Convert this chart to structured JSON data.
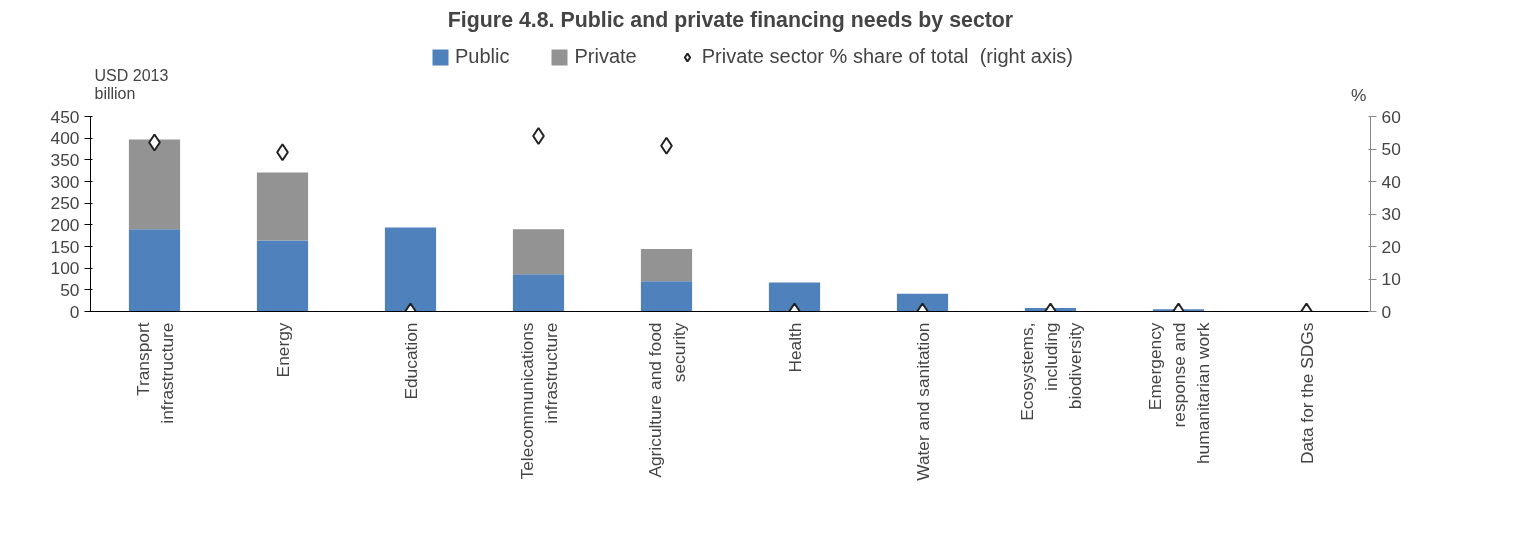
{
  "chart_data": {
    "type": "bar",
    "title": "Figure 4.8. Public and private financing needs by sector",
    "ylabel": "USD 2013\nbillion",
    "y2label": "%",
    "categories": [
      "Transport\ninfrastructure",
      "Energy",
      "Education",
      "Telecommunications\ninfrastructure",
      "Agriculture and food\nsecurity",
      "Health",
      "Water and sanitation",
      "Ecosystems,\nincluding\nbiodiversity",
      "Emergency\nresponse and\nhumanitarian work",
      "Data for the SDGs"
    ],
    "stacked": true,
    "series": [
      {
        "name": "Public",
        "color": "#4f81bd",
        "values": [
          190,
          164,
          194,
          86,
          70,
          67,
          41,
          8,
          5,
          0
        ]
      },
      {
        "name": "Private",
        "color": "#939393",
        "values": [
          207,
          157,
          0,
          104,
          74,
          0,
          0,
          0,
          0,
          0
        ]
      },
      {
        "name": "Private sector % share of total  (right axis)",
        "type": "scatter",
        "axis": "y2",
        "marker": "diamond",
        "color": "#ffffff",
        "values": [
          52,
          49,
          0,
          54,
          51,
          0,
          0,
          0,
          0,
          0
        ]
      }
    ],
    "ylim": [
      0,
      450
    ],
    "yticks": [
      0,
      50,
      100,
      150,
      200,
      250,
      300,
      350,
      400,
      450
    ],
    "y2lim": [
      0,
      60
    ],
    "y2ticks": [
      0,
      10,
      20,
      30,
      40,
      50,
      60
    ],
    "grid": false,
    "legend": "top"
  }
}
